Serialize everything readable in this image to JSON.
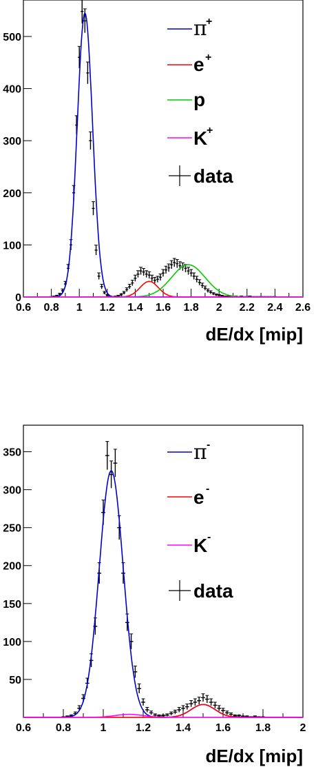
{
  "chart_data": [
    {
      "type": "line",
      "xlabel": "dE/dx [mip]",
      "ylabel": "",
      "xlim": [
        0.6,
        2.6
      ],
      "ylim": [
        0,
        570
      ],
      "x_ticks": [
        0.6,
        0.8,
        1,
        1.2,
        1.4,
        1.6,
        1.8,
        2,
        2.2,
        2.4,
        2.6
      ],
      "x_tick_labels": [
        "0.6",
        "0.8",
        "1",
        "1.2",
        "1.4",
        "1.6",
        "1.8",
        "2",
        "2.2",
        "2.4",
        "2.6"
      ],
      "y_ticks": [
        0,
        100,
        200,
        300,
        400,
        500
      ],
      "y_tick_labels": [
        "0",
        "100",
        "200",
        "300",
        "400",
        "500"
      ],
      "legend": [
        {
          "symbol": "π",
          "sup": "+",
          "label": "",
          "color": "#0000cc",
          "kind": "line"
        },
        {
          "symbol": "",
          "sup": "+",
          "label": "e",
          "color": "#ff0000",
          "kind": "line"
        },
        {
          "symbol": "",
          "sup": "",
          "label": "p",
          "color": "#00cc00",
          "kind": "line"
        },
        {
          "symbol": "",
          "sup": "+",
          "label": "K",
          "color": "#ff00ff",
          "kind": "line"
        },
        {
          "symbol": "",
          "sup": "",
          "label": "data",
          "color": "#000000",
          "kind": "cross"
        }
      ],
      "series": [
        {
          "color": "#0000cc",
          "components": [
            {
              "amplitude": 545,
              "mean": 1.04,
              "sigma": 0.055
            }
          ]
        },
        {
          "color": "#ff0000",
          "components": [
            {
              "amplitude": 30,
              "mean": 1.5,
              "sigma": 0.065
            }
          ]
        },
        {
          "color": "#00cc00",
          "components": [
            {
              "amplitude": 62,
              "mean": 1.78,
              "sigma": 0.12
            }
          ]
        },
        {
          "color": "#ff00ff",
          "components": [
            {
              "amplitude": 0.5,
              "mean": 1.3,
              "sigma": 0.2
            }
          ]
        }
      ],
      "data_points": {
        "x": [
          0.8,
          0.82,
          0.84,
          0.86,
          0.88,
          0.9,
          0.92,
          0.94,
          0.96,
          0.98,
          1.0,
          1.02,
          1.04,
          1.06,
          1.08,
          1.1,
          1.12,
          1.14,
          1.16,
          1.18,
          1.2,
          1.22,
          1.24,
          1.26,
          1.28,
          1.3,
          1.32,
          1.34,
          1.36,
          1.38,
          1.4,
          1.42,
          1.44,
          1.46,
          1.48,
          1.5,
          1.52,
          1.54,
          1.56,
          1.58,
          1.6,
          1.62,
          1.64,
          1.66,
          1.68,
          1.7,
          1.72,
          1.74,
          1.76,
          1.78,
          1.8,
          1.82,
          1.84,
          1.86,
          1.88,
          1.9,
          1.92,
          1.94,
          1.96,
          1.98,
          2.0,
          2.02,
          2.04,
          2.06,
          2.08,
          2.1,
          2.12,
          2.14,
          2.16,
          2.18,
          2.2,
          2.22,
          2.24,
          2.26,
          2.28,
          2.3,
          2.32,
          2.34,
          2.36,
          2.38,
          2.4
        ],
        "y": [
          0,
          1,
          2,
          5,
          12,
          25,
          55,
          100,
          200,
          330,
          460,
          548,
          530,
          430,
          300,
          170,
          90,
          40,
          20,
          8,
          3,
          1,
          0,
          1,
          2,
          4,
          8,
          14,
          20,
          27,
          36,
          44,
          50,
          48,
          44,
          42,
          36,
          32,
          34,
          38,
          46,
          52,
          56,
          62,
          66,
          64,
          60,
          58,
          55,
          50,
          46,
          40,
          34,
          28,
          22,
          17,
          12,
          9,
          6,
          4,
          3,
          2,
          1,
          1,
          1,
          0,
          1,
          0,
          1,
          0,
          0,
          1,
          0,
          0,
          0,
          0,
          0,
          0,
          0,
          0,
          0
        ],
        "err": [
          1,
          1,
          1.5,
          2.3,
          3.5,
          5,
          7.5,
          10,
          14,
          18,
          21,
          23,
          23,
          21,
          17,
          13,
          9.5,
          6.3,
          4.5,
          2.8,
          1.7,
          1,
          1,
          1,
          1.4,
          2,
          2.8,
          3.7,
          4.5,
          5.2,
          6,
          6.6,
          7.1,
          6.9,
          6.6,
          6.5,
          6,
          5.7,
          5.8,
          6.2,
          6.8,
          7.2,
          7.5,
          7.9,
          8.1,
          8,
          7.7,
          7.6,
          7.4,
          7.1,
          6.8,
          6.3,
          5.8,
          5.3,
          4.7,
          4.1,
          3.5,
          3,
          2.4,
          2,
          1.7,
          1.4,
          1,
          1,
          1,
          1,
          1,
          1,
          1,
          1,
          1,
          1,
          1,
          1,
          1,
          1,
          1,
          1,
          1,
          1,
          1
        ]
      }
    },
    {
      "type": "line",
      "xlabel": "dE/dx [mip]",
      "ylabel": "",
      "xlim": [
        0.6,
        2.0
      ],
      "ylim": [
        0,
        385
      ],
      "x_ticks": [
        0.6,
        0.8,
        1,
        1.2,
        1.4,
        1.6,
        1.8,
        2
      ],
      "x_tick_labels": [
        "0.6",
        "0.8",
        "1",
        "1.2",
        "1.4",
        "1.6",
        "1.8",
        "2"
      ],
      "y_ticks": [
        50,
        100,
        150,
        200,
        250,
        300,
        350
      ],
      "y_tick_labels": [
        "50",
        "100",
        "150",
        "200",
        "250",
        "300",
        "350"
      ],
      "legend": [
        {
          "symbol": "π",
          "sup": "-",
          "label": "",
          "color": "#0000cc",
          "kind": "line"
        },
        {
          "symbol": "",
          "sup": "-",
          "label": "e",
          "color": "#ff0000",
          "kind": "line"
        },
        {
          "symbol": "",
          "sup": "-",
          "label": "K",
          "color": "#ff00ff",
          "kind": "line"
        },
        {
          "symbol": "",
          "sup": "",
          "label": "data",
          "color": "#000000",
          "kind": "cross"
        }
      ],
      "series": [
        {
          "color": "#0000cc",
          "components": [
            {
              "amplitude": 325,
              "mean": 1.04,
              "sigma": 0.06
            },
            {
              "amplitude": 17,
              "mean": 1.5,
              "sigma": 0.06
            }
          ]
        },
        {
          "color": "#ff0000",
          "components": [
            {
              "amplitude": 17,
              "mean": 1.5,
              "sigma": 0.06
            }
          ]
        },
        {
          "color": "#ff00ff",
          "components": [
            {
              "amplitude": 4,
              "mean": 1.13,
              "sigma": 0.07
            }
          ]
        }
      ],
      "data_points": {
        "x": [
          0.8,
          0.82,
          0.84,
          0.86,
          0.88,
          0.9,
          0.92,
          0.94,
          0.96,
          0.98,
          1.0,
          1.02,
          1.04,
          1.06,
          1.08,
          1.1,
          1.12,
          1.14,
          1.16,
          1.18,
          1.2,
          1.22,
          1.24,
          1.26,
          1.28,
          1.3,
          1.32,
          1.34,
          1.36,
          1.38,
          1.4,
          1.42,
          1.44,
          1.46,
          1.48,
          1.5,
          1.52,
          1.54,
          1.56,
          1.58,
          1.6,
          1.62,
          1.64,
          1.66,
          1.68,
          1.7,
          1.72,
          1.74,
          1.76,
          1.78,
          1.8
        ],
        "y": [
          0,
          1,
          2,
          5,
          12,
          25,
          45,
          75,
          120,
          190,
          270,
          345,
          320,
          335,
          250,
          190,
          125,
          100,
          60,
          38,
          20,
          10,
          6,
          3,
          2,
          2,
          3,
          5,
          7,
          10,
          12,
          14,
          18,
          20,
          22,
          26,
          24,
          20,
          16,
          12,
          9,
          6,
          4,
          2,
          2,
          1,
          1,
          0,
          1,
          0,
          0
        ],
        "err": [
          1,
          1,
          1.4,
          2.2,
          3.5,
          5,
          6.7,
          8.7,
          11,
          13.8,
          16.4,
          18.6,
          17.9,
          18.3,
          15.8,
          13.8,
          11.2,
          10,
          7.7,
          6.2,
          4.5,
          3.2,
          2.4,
          1.7,
          1.4,
          1.4,
          1.7,
          2.2,
          2.6,
          3.2,
          3.5,
          3.7,
          4.2,
          4.5,
          4.7,
          5.1,
          4.9,
          4.5,
          4,
          3.5,
          3,
          2.4,
          2,
          1.4,
          1.4,
          1,
          1,
          1,
          1,
          1,
          1
        ]
      }
    }
  ]
}
